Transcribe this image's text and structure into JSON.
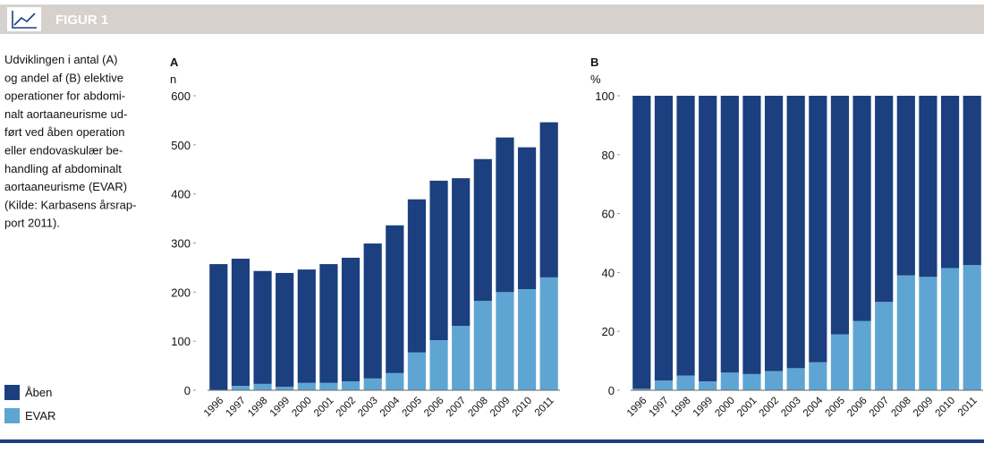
{
  "header": {
    "title": "FIGUR 1"
  },
  "caption": [
    "Udviklingen i antal (A)",
    "og andel af (B) elektive",
    "operationer for abdomi-",
    "nalt aortaaneurisme ud-",
    "ført ved åben operation",
    "eller endovaskulær be-",
    "handling af abdominalt",
    "aortaaneurisme (EVAR)",
    "(Kilde: Karbasens årsrap-",
    "port 2011)."
  ],
  "chart_data": [
    {
      "type": "stacked_bar",
      "panel": "A",
      "ylabel": "n",
      "categories": [
        "1996",
        "1997",
        "1998",
        "1999",
        "2000",
        "2001",
        "2002",
        "2003",
        "2004",
        "2005",
        "2006",
        "2007",
        "2008",
        "2009",
        "2010",
        "2011"
      ],
      "series": [
        {
          "name": "Åben",
          "color": "#1b3f7f",
          "values": [
            256,
            259,
            230,
            232,
            231,
            242,
            252,
            275,
            301,
            312,
            325,
            301,
            289,
            315,
            289,
            316
          ]
        },
        {
          "name": "EVAR",
          "color": "#5fa5d3",
          "values": [
            1,
            9,
            13,
            7,
            15,
            15,
            18,
            24,
            35,
            77,
            102,
            131,
            182,
            200,
            206,
            230
          ]
        }
      ],
      "ylim": [
        0,
        600
      ],
      "yticks": [
        0,
        100,
        200,
        300,
        400,
        500,
        600
      ]
    },
    {
      "type": "stacked_bar",
      "panel": "B",
      "ylabel": "%",
      "categories": [
        "1996",
        "1997",
        "1998",
        "1999",
        "2000",
        "2001",
        "2002",
        "2003",
        "2004",
        "2005",
        "2006",
        "2007",
        "2008",
        "2009",
        "2010",
        "2011"
      ],
      "series": [
        {
          "color": "#1b3f7f",
          "values": [
            99.5,
            96.7,
            95,
            97,
            94,
            94.5,
            93.5,
            92.5,
            90.5,
            81,
            76.5,
            70,
            61,
            61.5,
            58.5,
            57.5
          ]
        },
        {
          "color": "#5fa5d3",
          "values": [
            0.5,
            3.3,
            5,
            3,
            6,
            5.5,
            6.5,
            7.5,
            9.5,
            19,
            23.5,
            30,
            39,
            38.5,
            41.5,
            42.5
          ]
        }
      ],
      "ylim": [
        0,
        100
      ],
      "yticks": [
        0,
        20,
        40,
        60,
        80,
        100
      ]
    }
  ]
}
